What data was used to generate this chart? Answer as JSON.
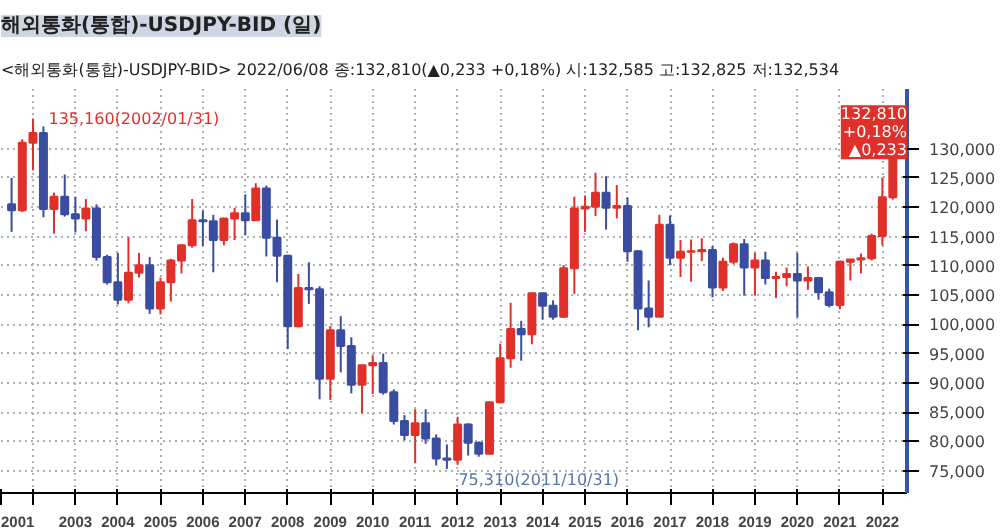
{
  "chart_data": {
    "type": "candlestick",
    "title": "해외통화(통합)-USDJPY-BID (일)",
    "subtitle": "<해외통화(통합)-USDJPY-BID> 2022/06/08 종:132,810(▲0,233 +0,18%) 시:132,585 고:132,825 저:132,534",
    "x": [
      "2001-07",
      "2001-10",
      "2002-01",
      "2002-04",
      "2002-07",
      "2002-10",
      "2003-01",
      "2003-04",
      "2003-07",
      "2003-10",
      "2004-01",
      "2004-04",
      "2004-07",
      "2004-10",
      "2005-01",
      "2005-04",
      "2005-07",
      "2005-10",
      "2006-01",
      "2006-04",
      "2006-07",
      "2006-10",
      "2007-01",
      "2007-04",
      "2007-07",
      "2007-10",
      "2008-01",
      "2008-04",
      "2008-07",
      "2008-10",
      "2009-01",
      "2009-04",
      "2009-07",
      "2009-10",
      "2010-01",
      "2010-04",
      "2010-07",
      "2010-10",
      "2011-01",
      "2011-04",
      "2011-07",
      "2011-10",
      "2012-01",
      "2012-04",
      "2012-07",
      "2012-10",
      "2013-01",
      "2013-04",
      "2013-07",
      "2013-10",
      "2014-01",
      "2014-04",
      "2014-07",
      "2014-10",
      "2015-01",
      "2015-04",
      "2015-07",
      "2015-10",
      "2016-01",
      "2016-04",
      "2016-07",
      "2016-10",
      "2017-01",
      "2017-04",
      "2017-07",
      "2017-10",
      "2018-01",
      "2018-04",
      "2018-07",
      "2018-10",
      "2019-01",
      "2019-04",
      "2019-07",
      "2019-10",
      "2020-01",
      "2020-04",
      "2020-07",
      "2020-10",
      "2021-01",
      "2021-04",
      "2021-07",
      "2021-10",
      "2022-01",
      "2022-04"
    ],
    "ohlc": [
      [
        120.5,
        125.0,
        115.8,
        119.5
      ],
      [
        119.5,
        131.6,
        119.2,
        131.0
      ],
      [
        131.0,
        135.16,
        126.3,
        132.7
      ],
      [
        132.7,
        133.8,
        118.3,
        119.7
      ],
      [
        119.7,
        122.5,
        115.5,
        121.8
      ],
      [
        121.8,
        125.6,
        118.4,
        118.8
      ],
      [
        118.8,
        121.8,
        115.7,
        118.1
      ],
      [
        118.1,
        121.4,
        115.9,
        119.8
      ],
      [
        119.8,
        120.5,
        110.9,
        111.5
      ],
      [
        111.5,
        111.9,
        106.8,
        107.2
      ],
      [
        107.2,
        112.2,
        103.4,
        104.2
      ],
      [
        104.2,
        114.9,
        103.6,
        108.8
      ],
      [
        108.8,
        112.2,
        108.0,
        110.1
      ],
      [
        110.1,
        111.5,
        101.8,
        102.7
      ],
      [
        102.7,
        108.0,
        101.7,
        107.2
      ],
      [
        107.2,
        111.2,
        103.9,
        110.9
      ],
      [
        110.9,
        113.7,
        108.7,
        113.5
      ],
      [
        113.5,
        121.4,
        113.1,
        117.8
      ],
      [
        117.8,
        119.4,
        113.4,
        117.6
      ],
      [
        117.6,
        118.7,
        108.9,
        114.4
      ],
      [
        114.4,
        118.2,
        113.5,
        118.1
      ],
      [
        118.1,
        119.9,
        114.4,
        119.0
      ],
      [
        119.0,
        122.2,
        115.2,
        117.8
      ],
      [
        117.8,
        124.1,
        117.7,
        123.2
      ],
      [
        123.2,
        123.7,
        111.6,
        114.8
      ],
      [
        114.8,
        117.9,
        107.2,
        111.7
      ],
      [
        111.7,
        111.9,
        95.8,
        99.7
      ],
      [
        99.7,
        108.6,
        99.5,
        106.2
      ],
      [
        106.2,
        110.6,
        103.5,
        106.0
      ],
      [
        106.0,
        106.5,
        87.2,
        90.7
      ],
      [
        90.7,
        99.7,
        87.1,
        99.0
      ],
      [
        99.0,
        101.4,
        91.8,
        96.3
      ],
      [
        96.3,
        97.8,
        88.2,
        89.7
      ],
      [
        89.7,
        93.1,
        84.8,
        93.0
      ],
      [
        93.0,
        94.7,
        88.1,
        93.4
      ],
      [
        93.4,
        95.0,
        88.0,
        88.4
      ],
      [
        88.4,
        88.9,
        82.9,
        83.5
      ],
      [
        83.5,
        84.5,
        80.2,
        81.1
      ],
      [
        81.1,
        85.5,
        76.3,
        83.1
      ],
      [
        83.1,
        85.5,
        79.6,
        80.5
      ],
      [
        80.5,
        81.2,
        75.9,
        77.1
      ],
      [
        77.1,
        79.5,
        75.31,
        76.9
      ],
      [
        76.9,
        84.2,
        76.0,
        82.9
      ],
      [
        82.9,
        83.1,
        77.6,
        79.8
      ],
      [
        79.8,
        80.0,
        77.4,
        77.9
      ],
      [
        77.9,
        86.8,
        77.8,
        86.7
      ],
      [
        86.7,
        96.7,
        86.5,
        94.2
      ],
      [
        94.2,
        103.7,
        92.6,
        99.2
      ],
      [
        99.2,
        100.6,
        93.8,
        98.3
      ],
      [
        98.3,
        105.4,
        96.6,
        105.3
      ],
      [
        105.3,
        105.4,
        100.8,
        103.2
      ],
      [
        103.2,
        104.1,
        100.8,
        101.3
      ],
      [
        101.3,
        110.1,
        101.1,
        109.6
      ],
      [
        109.6,
        121.8,
        105.2,
        119.8
      ],
      [
        119.8,
        122.0,
        115.8,
        120.1
      ],
      [
        120.1,
        125.9,
        118.5,
        122.5
      ],
      [
        122.5,
        125.3,
        116.2,
        119.9
      ],
      [
        119.9,
        123.8,
        118.1,
        120.2
      ],
      [
        120.2,
        121.7,
        110.7,
        112.5
      ],
      [
        112.5,
        112.7,
        99.0,
        102.7
      ],
      [
        102.7,
        107.5,
        99.5,
        101.3
      ],
      [
        101.3,
        118.7,
        101.2,
        117.0
      ],
      [
        117.0,
        118.6,
        110.1,
        111.4
      ],
      [
        111.4,
        114.4,
        108.1,
        112.4
      ],
      [
        112.4,
        114.5,
        107.3,
        112.5
      ],
      [
        112.5,
        114.7,
        110.8,
        112.7
      ],
      [
        112.7,
        113.4,
        104.6,
        106.3
      ],
      [
        106.3,
        111.4,
        105.7,
        110.7
      ],
      [
        110.7,
        114.0,
        110.3,
        113.7
      ],
      [
        113.7,
        114.6,
        104.9,
        109.7
      ],
      [
        109.7,
        112.2,
        104.9,
        110.9
      ],
      [
        110.9,
        112.4,
        106.8,
        107.9
      ],
      [
        107.9,
        109.0,
        104.5,
        108.1
      ],
      [
        108.1,
        109.7,
        106.5,
        108.6
      ],
      [
        108.6,
        112.2,
        101.2,
        107.5
      ],
      [
        107.5,
        109.9,
        105.9,
        107.9
      ],
      [
        107.9,
        107.9,
        104.2,
        105.5
      ],
      [
        105.5,
        106.1,
        102.9,
        103.3
      ],
      [
        103.3,
        110.9,
        102.6,
        110.7
      ],
      [
        110.7,
        111.1,
        107.5,
        111.1
      ],
      [
        111.1,
        112.1,
        108.7,
        111.3
      ],
      [
        111.3,
        115.5,
        110.9,
        115.1
      ],
      [
        115.1,
        125.1,
        113.5,
        121.7
      ],
      [
        121.7,
        132.825,
        121.3,
        132.81
      ]
    ],
    "xlim": [
      "2001-04",
      "2022-08"
    ],
    "xticks": [
      {
        "value": "2001-04",
        "label": "2001"
      },
      {
        "value": "2002",
        "label": null
      },
      "2003",
      "2004",
      "2005",
      "2006",
      "2007",
      "2008",
      "2009",
      "2010",
      "2011",
      "2012",
      "2013",
      "2014",
      "2015",
      "2016",
      "2017",
      "2018",
      "2019",
      "2020",
      "2021",
      "2022"
    ],
    "ylim": [
      71.2,
      140.2
    ],
    "yticks": [
      {
        "value": 75,
        "label": "75,000"
      },
      {
        "value": 80,
        "label": "80,000"
      },
      {
        "value": 85,
        "label": "85,000"
      },
      {
        "value": 90,
        "label": "90,000"
      },
      {
        "value": 95,
        "label": "95,000"
      },
      {
        "value": 100,
        "label": "100,000"
      },
      {
        "value": 105,
        "label": "105,000"
      },
      {
        "value": 110,
        "label": "110,000"
      },
      {
        "value": 115,
        "label": "115,000"
      },
      {
        "value": 120,
        "label": "120,000"
      },
      {
        "value": 125,
        "label": "125,000"
      },
      {
        "value": 130,
        "label": "130,000"
      }
    ],
    "grid": true,
    "annotations": [
      {
        "text": "135,160(2002/01/31)",
        "x": "2002-01-31",
        "y": 135.16
      },
      {
        "text": "75,310(2011/10/31)",
        "x": "2011-10-31",
        "y": 75.31
      },
      {
        "text": "132,810\n+0,18%\n▲0,233",
        "x": "2022-06-08",
        "y": 132.81
      }
    ]
  }
}
